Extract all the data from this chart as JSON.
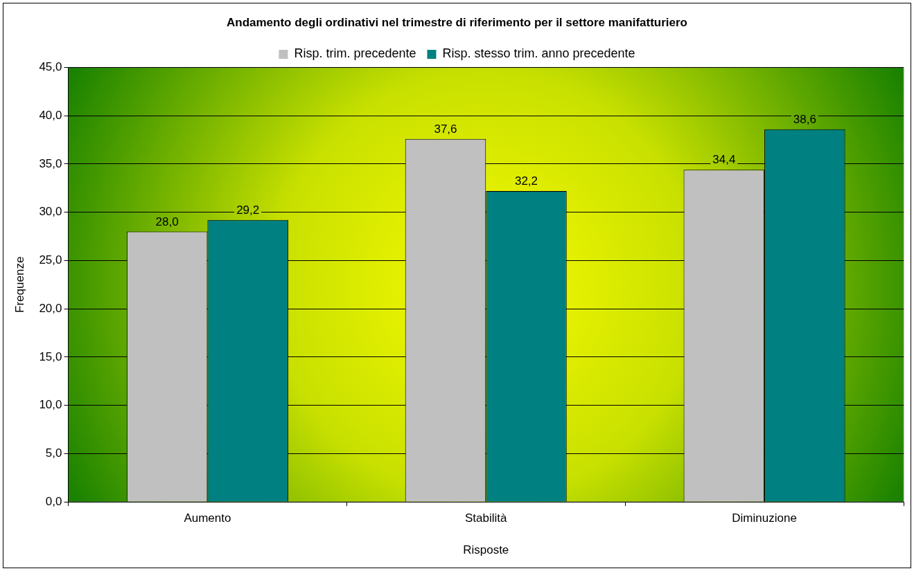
{
  "chart_data": {
    "type": "bar",
    "title": "Andamento degli ordinativi nel trimestre di riferimento per il settore manifatturiero",
    "xlabel": "Risposte",
    "ylabel": "Frequenze",
    "categories": [
      "Aumento",
      "Stabilità",
      "Diminuzione"
    ],
    "series": [
      {
        "name": "Risp. trim. precedente",
        "color": "#c0c0c0",
        "values": [
          28.0,
          37.6,
          34.4
        ],
        "value_labels": [
          "28,0",
          "37,6",
          "34,4"
        ]
      },
      {
        "name": "Risp. stesso trim. anno precedente",
        "color": "#008080",
        "values": [
          29.2,
          32.2,
          38.6
        ],
        "value_labels": [
          "29,2",
          "32,2",
          "38,6"
        ]
      }
    ],
    "ylim": [
      0,
      45
    ],
    "yticks": [
      {
        "value": 0,
        "label": "0,0"
      },
      {
        "value": 5,
        "label": "5,0"
      },
      {
        "value": 10,
        "label": "10,0"
      },
      {
        "value": 15,
        "label": "15,0"
      },
      {
        "value": 20,
        "label": "20,0"
      },
      {
        "value": 25,
        "label": "25,0"
      },
      {
        "value": 30,
        "label": "30,0"
      },
      {
        "value": 35,
        "label": "35,0"
      },
      {
        "value": 40,
        "label": "40,0"
      },
      {
        "value": 45,
        "label": "45,0"
      }
    ],
    "grid": "y",
    "legend": "top"
  }
}
